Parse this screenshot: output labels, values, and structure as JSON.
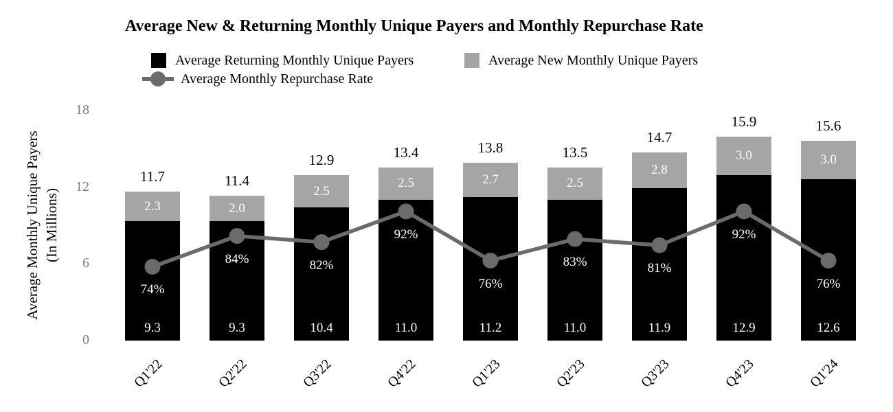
{
  "title": "Average New & Returning Monthly Unique Payers and Monthly Repurchase Rate",
  "legend": {
    "returning_label": "Average Returning Monthly Unique Payers",
    "new_label": "Average New Monthly Unique Payers",
    "rate_label": "Average Monthly Repurchase Rate"
  },
  "y_axis": {
    "title_line1": "Average Monthly Unique Payers",
    "title_line2": "(In Millions)",
    "ticks": [
      "18",
      "12",
      "6",
      "0"
    ]
  },
  "colors": {
    "returning_bar": "#000000",
    "new_bar": "#a5a5a5",
    "rate_line": "#6b6b6b",
    "tick_text": "#808080"
  },
  "chart_data": {
    "type": "bar",
    "subtype": "stacked-bar-with-line",
    "title": "Average New & Returning Monthly Unique Payers and Monthly Repurchase Rate",
    "xlabel": "",
    "ylabel": "Average Monthly Unique Payers (In Millions)",
    "ylim": [
      0,
      18
    ],
    "yticks": [
      0,
      6,
      12,
      18
    ],
    "grid": false,
    "legend_position": "top",
    "categories": [
      "Q1'22",
      "Q2'22",
      "Q3'22",
      "Q4'22",
      "Q1'23",
      "Q2'23",
      "Q3'23",
      "Q4'23",
      "Q1'24"
    ],
    "series": [
      {
        "name": "Average Returning Monthly Unique Payers",
        "role": "stack-bottom",
        "values": [
          9.3,
          9.3,
          10.4,
          11.0,
          11.2,
          11.0,
          11.9,
          12.9,
          12.6
        ]
      },
      {
        "name": "Average New Monthly Unique Payers",
        "role": "stack-top",
        "values": [
          2.3,
          2.0,
          2.5,
          2.5,
          2.7,
          2.5,
          2.8,
          3.0,
          3.0
        ]
      },
      {
        "name": "Average Monthly Repurchase Rate",
        "role": "line",
        "unit": "%",
        "values": [
          74,
          84,
          82,
          92,
          76,
          83,
          81,
          92,
          76
        ]
      }
    ],
    "totals": [
      11.7,
      11.4,
      12.9,
      13.4,
      13.8,
      13.5,
      14.7,
      15.9,
      15.6
    ],
    "secondary_axis_pct_range": [
      50,
      125
    ]
  }
}
